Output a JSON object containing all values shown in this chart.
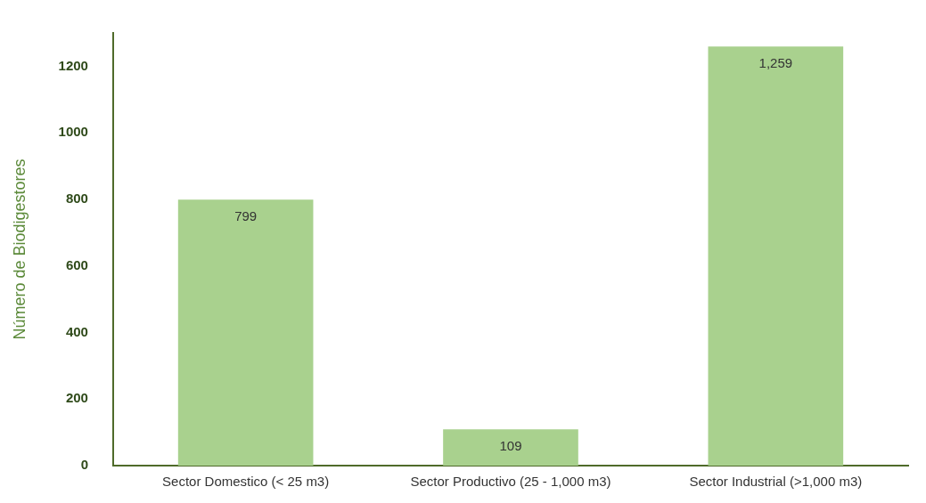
{
  "chart_data": {
    "type": "bar",
    "ylabel": "Número de Biodigestores",
    "categories": [
      "Sector Domestico (< 25 m3)",
      "Sector Productivo (25 - 1,000 m3)",
      "Sector Industrial (>1,000 m3)"
    ],
    "values": [
      799,
      109,
      1259
    ],
    "value_labels": [
      "799",
      "109",
      "1,259"
    ],
    "color": "#a9d18e",
    "ylim": [
      0,
      1300
    ],
    "yticks": [
      0,
      200,
      400,
      600,
      800,
      1000,
      1200
    ],
    "grid": false,
    "legend": false
  }
}
